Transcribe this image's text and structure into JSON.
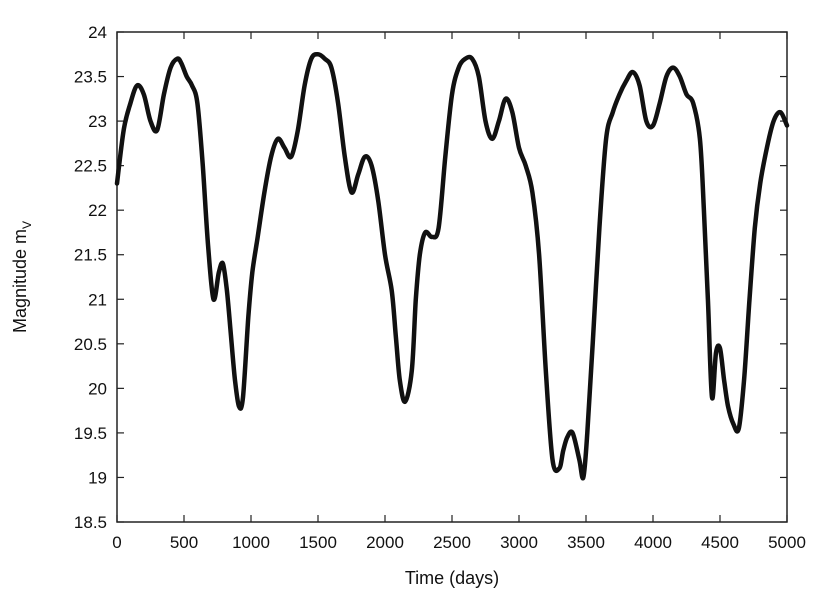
{
  "chart_data": {
    "type": "line",
    "title": "",
    "xlabel": "Time (days)",
    "ylabel_main": "Magnitude m",
    "ylabel_sub": "V",
    "xlim": [
      0,
      5000
    ],
    "ylim": [
      18.5,
      24
    ],
    "xticks": [
      0,
      500,
      1000,
      1500,
      2000,
      2500,
      3000,
      3500,
      4000,
      4500,
      5000
    ],
    "xtick_labels": [
      "0",
      "500",
      "1000",
      "1500",
      "2000",
      "2500",
      "3000",
      "3500",
      "4000",
      "4500",
      "5000"
    ],
    "yticks": [
      18.5,
      19,
      19.5,
      20,
      20.5,
      21,
      21.5,
      22,
      22.5,
      23,
      23.5,
      24
    ],
    "ytick_labels": [
      "18.5",
      "19",
      "19.5",
      "20",
      "20.5",
      "21",
      "21.5",
      "22",
      "22.5",
      "23",
      "23.5",
      "24"
    ],
    "grid": false,
    "legend": "none",
    "line_color": "#111111",
    "series": [
      {
        "x": [
          0,
          50,
          100,
          150,
          200,
          250,
          300,
          350,
          400,
          450,
          480,
          520,
          560,
          600,
          640,
          680,
          720,
          760,
          790,
          820,
          850,
          880,
          910,
          940,
          980,
          1010,
          1050,
          1100,
          1150,
          1200,
          1250,
          1300,
          1350,
          1400,
          1450,
          1500,
          1550,
          1600,
          1650,
          1700,
          1750,
          1800,
          1850,
          1900,
          1950,
          2000,
          2050,
          2080,
          2110,
          2150,
          2200,
          2230,
          2260,
          2300,
          2350,
          2400,
          2450,
          2500,
          2550,
          2600,
          2650,
          2700,
          2750,
          2800,
          2850,
          2900,
          2950,
          3000,
          3050,
          3100,
          3150,
          3200,
          3250,
          3300,
          3330,
          3360,
          3400,
          3450,
          3480,
          3510,
          3550,
          3600,
          3650,
          3700,
          3750,
          3800,
          3850,
          3900,
          3950,
          4000,
          4050,
          4100,
          4150,
          4200,
          4250,
          4300,
          4350,
          4380,
          4410,
          4440,
          4470,
          4500,
          4530,
          4560,
          4600,
          4640,
          4680,
          4720,
          4760,
          4800,
          4850,
          4900,
          4950,
          5000
        ],
        "y": [
          22.3,
          22.9,
          23.2,
          23.4,
          23.3,
          23.0,
          22.9,
          23.3,
          23.6,
          23.7,
          23.65,
          23.5,
          23.4,
          23.2,
          22.5,
          21.6,
          21.0,
          21.3,
          21.4,
          21.1,
          20.6,
          20.1,
          19.8,
          19.9,
          20.8,
          21.3,
          21.7,
          22.2,
          22.6,
          22.8,
          22.7,
          22.6,
          22.9,
          23.4,
          23.7,
          23.75,
          23.7,
          23.6,
          23.2,
          22.6,
          22.2,
          22.4,
          22.6,
          22.5,
          22.1,
          21.5,
          21.1,
          20.6,
          20.1,
          19.85,
          20.2,
          21.0,
          21.5,
          21.75,
          21.7,
          21.8,
          22.6,
          23.3,
          23.6,
          23.7,
          23.7,
          23.5,
          23.0,
          22.8,
          23.0,
          23.25,
          23.1,
          22.7,
          22.5,
          22.2,
          21.5,
          20.2,
          19.2,
          19.1,
          19.3,
          19.45,
          19.5,
          19.2,
          19.0,
          19.5,
          20.5,
          21.8,
          22.8,
          23.1,
          23.3,
          23.45,
          23.55,
          23.4,
          23.0,
          22.95,
          23.2,
          23.5,
          23.6,
          23.5,
          23.3,
          23.2,
          22.8,
          22.0,
          21.0,
          19.9,
          20.4,
          20.45,
          20.1,
          19.8,
          19.6,
          19.55,
          20.1,
          21.0,
          21.8,
          22.3,
          22.7,
          23.0,
          23.1,
          22.95
        ]
      }
    ]
  }
}
